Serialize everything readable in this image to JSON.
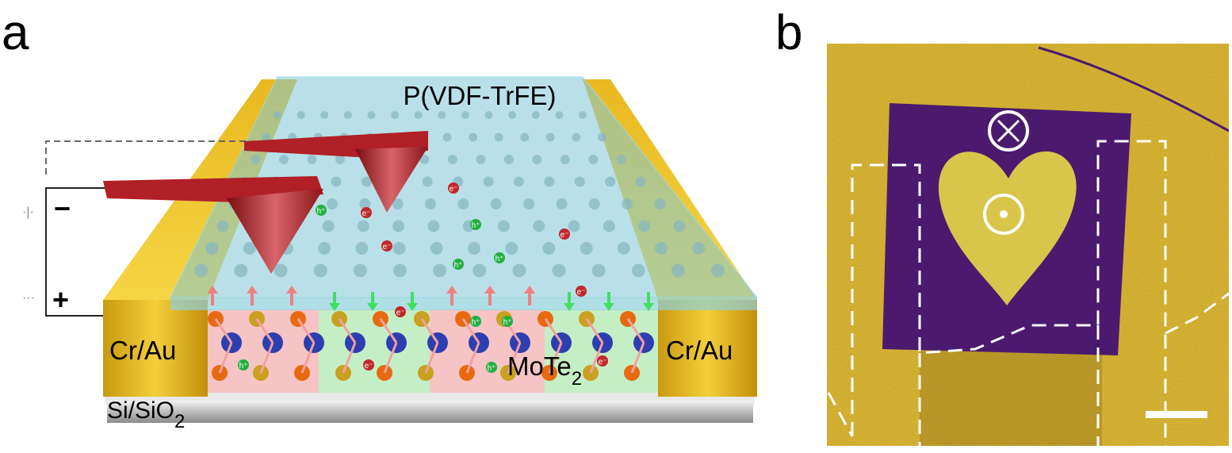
{
  "panels": [
    {
      "label": "a",
      "layers": {
        "top": "P(VDF-TrFE)",
        "electrode_left": "Cr/Au",
        "electrode_right": "Cr/Au",
        "channel": {
          "text": "MoTe",
          "subscript": "2"
        },
        "substrate": {
          "text": "Si/SiO",
          "subscript": "2"
        }
      },
      "bias": {
        "negative": "−",
        "positive": "+"
      },
      "charges": [
        "e⁻",
        "h⁺",
        "e⁻",
        "h⁺",
        "e⁻",
        "h⁺",
        "h⁺",
        "e⁻",
        "h⁺",
        "h⁺",
        "e⁻",
        "h⁺",
        "e⁻",
        "h⁺",
        "e⁻",
        "e⁻"
      ]
    },
    {
      "label": "b"
    }
  ]
}
